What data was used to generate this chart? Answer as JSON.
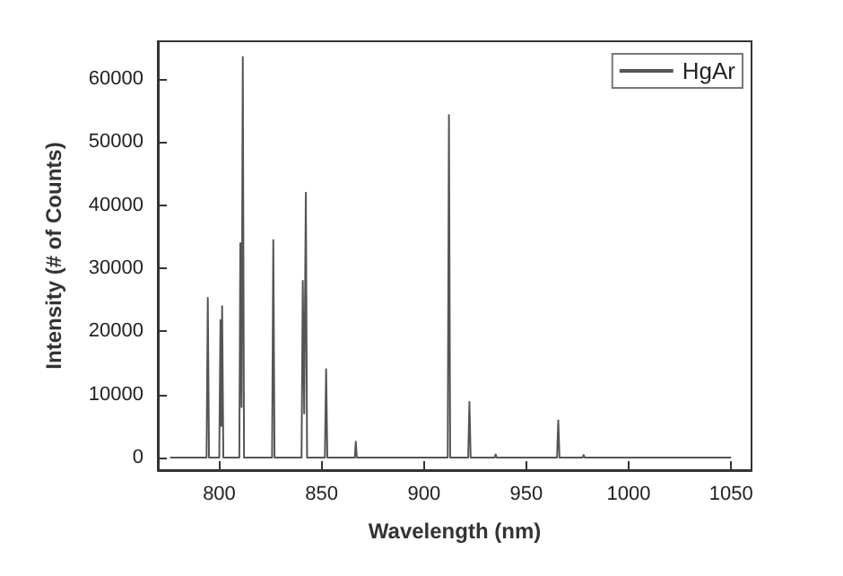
{
  "chart_data": {
    "type": "line",
    "xlabel": "Wavelength (nm)",
    "ylabel": "Intensity (# of Counts)",
    "xlim": [
      770,
      1060
    ],
    "xticks": [
      800,
      850,
      900,
      950,
      1000,
      1050
    ],
    "ylim": [
      -2000,
      66000
    ],
    "yticks": [
      0,
      10000,
      20000,
      30000,
      40000,
      50000,
      60000
    ],
    "x": [
      776,
      793.8,
      794.4,
      795,
      800,
      800.6,
      801,
      801.4,
      802,
      809.8,
      810.3,
      810.9,
      811.5,
      812.1,
      825.8,
      826.4,
      827,
      840.2,
      840.8,
      841.5,
      842.3,
      842.9,
      851.6,
      852.2,
      852.8,
      866.2,
      866.7,
      867.2,
      911.6,
      912.2,
      912.8,
      921.6,
      922.2,
      922.8,
      934.5,
      935,
      935.5,
      965,
      965.6,
      966.2,
      977.5,
      978,
      978.5,
      1050
    ],
    "series": [
      {
        "name": "HgAr",
        "color": "#555555",
        "values": [
          0,
          0,
          25300,
          0,
          0,
          21800,
          5000,
          24000,
          0,
          0,
          34000,
          8000,
          63500,
          0,
          0,
          34500,
          0,
          0,
          28000,
          7000,
          42000,
          0,
          0,
          14000,
          0,
          0,
          2500,
          0,
          0,
          54300,
          0,
          0,
          8800,
          0,
          0,
          500,
          0,
          0,
          5900,
          0,
          0,
          400,
          0,
          0
        ]
      }
    ],
    "grid": false,
    "legend": "top right",
    "marker": "none",
    "line_style": "solid"
  }
}
